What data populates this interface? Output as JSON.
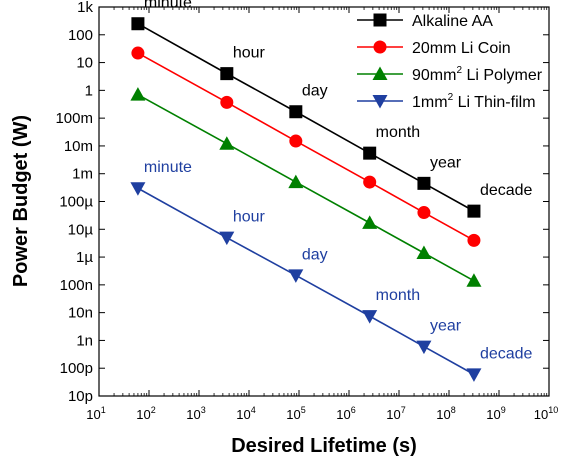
{
  "chart_data": {
    "type": "line",
    "title": "",
    "xlabel": "Desired Lifetime (s)",
    "ylabel": "Power Budget (W)",
    "x_scale": "log",
    "y_scale": "log",
    "xlim": [
      10,
      10000000000
    ],
    "ylim": [
      1e-11,
      1000
    ],
    "grid": false,
    "legend_position": "top-right",
    "x_ticks": [
      {
        "value": 10,
        "base": "10",
        "exp": "1"
      },
      {
        "value": 100,
        "base": "10",
        "exp": "2"
      },
      {
        "value": 1000,
        "base": "10",
        "exp": "3"
      },
      {
        "value": 10000,
        "base": "10",
        "exp": "4"
      },
      {
        "value": 100000,
        "base": "10",
        "exp": "5"
      },
      {
        "value": 1000000,
        "base": "10",
        "exp": "6"
      },
      {
        "value": 10000000,
        "base": "10",
        "exp": "7"
      },
      {
        "value": 100000000,
        "base": "10",
        "exp": "8"
      },
      {
        "value": 1000000000,
        "base": "10",
        "exp": "9"
      },
      {
        "value": 10000000000,
        "base": "10",
        "exp": "10"
      }
    ],
    "y_ticks": [
      {
        "value": 1000,
        "label": "1k"
      },
      {
        "value": 100,
        "label": "100"
      },
      {
        "value": 10,
        "label": "10"
      },
      {
        "value": 1,
        "label": "1"
      },
      {
        "value": 0.1,
        "label": "100m"
      },
      {
        "value": 0.01,
        "label": "10m"
      },
      {
        "value": 0.001,
        "label": "1m"
      },
      {
        "value": 0.0001,
        "label": "100µ"
      },
      {
        "value": 1e-05,
        "label": "10µ"
      },
      {
        "value": 1e-06,
        "label": "1µ"
      },
      {
        "value": 1e-07,
        "label": "100n"
      },
      {
        "value": 1e-08,
        "label": "10n"
      },
      {
        "value": 1e-09,
        "label": "1n"
      },
      {
        "value": 1e-10,
        "label": "100p"
      },
      {
        "value": 1e-11,
        "label": "10p"
      }
    ],
    "x": [
      60,
      3600,
      86400,
      2592000,
      31536000,
      315360000
    ],
    "series": [
      {
        "name": "Alkaline AA",
        "name_sup": "",
        "name_rest": "",
        "marker": "square",
        "color": "#000000",
        "values": [
          250,
          4,
          0.17,
          0.0055,
          0.00045,
          4.5e-05
        ]
      },
      {
        "name": "20mm Li Coin",
        "name_sup": "",
        "name_rest": "",
        "marker": "circle",
        "color": "#ff0000",
        "values": [
          22,
          0.37,
          0.015,
          0.0005,
          4e-05,
          4e-06
        ]
      },
      {
        "name": "90mm",
        "name_sup": "2",
        "name_rest": " Li Polymer",
        "marker": "triangle-up",
        "color": "#008000",
        "values": [
          0.7,
          0.012,
          0.0005,
          1.7e-05,
          1.4e-06,
          1.4e-07
        ]
      },
      {
        "name": "1mm",
        "name_sup": "2",
        "name_rest": " Li Thin-film",
        "marker": "triangle-down",
        "color": "#1f3fa0",
        "values": [
          0.0003,
          5e-06,
          2.2e-07,
          7.5e-09,
          6e-10,
          6e-11
        ]
      }
    ],
    "annotations": [
      {
        "text": "minute",
        "color": "#000000",
        "x": 60,
        "y": 250
      },
      {
        "text": "hour",
        "color": "#000000",
        "x": 3600,
        "y": 4
      },
      {
        "text": "day",
        "color": "#000000",
        "x": 86400,
        "y": 0.17
      },
      {
        "text": "month",
        "color": "#000000",
        "x": 2592000,
        "y": 0.0055
      },
      {
        "text": "year",
        "color": "#000000",
        "x": 31536000,
        "y": 0.00045
      },
      {
        "text": "decade",
        "color": "#000000",
        "x": 315360000,
        "y": 4.5e-05
      },
      {
        "text": "minute",
        "color": "#1f3fa0",
        "x": 60,
        "y": 0.0003
      },
      {
        "text": "hour",
        "color": "#1f3fa0",
        "x": 3600,
        "y": 5e-06
      },
      {
        "text": "day",
        "color": "#1f3fa0",
        "x": 86400,
        "y": 2.2e-07
      },
      {
        "text": "month",
        "color": "#1f3fa0",
        "x": 2592000,
        "y": 7.5e-09
      },
      {
        "text": "year",
        "color": "#1f3fa0",
        "x": 31536000,
        "y": 6e-10
      },
      {
        "text": "decade",
        "color": "#1f3fa0",
        "x": 315360000,
        "y": 6e-11
      }
    ]
  }
}
